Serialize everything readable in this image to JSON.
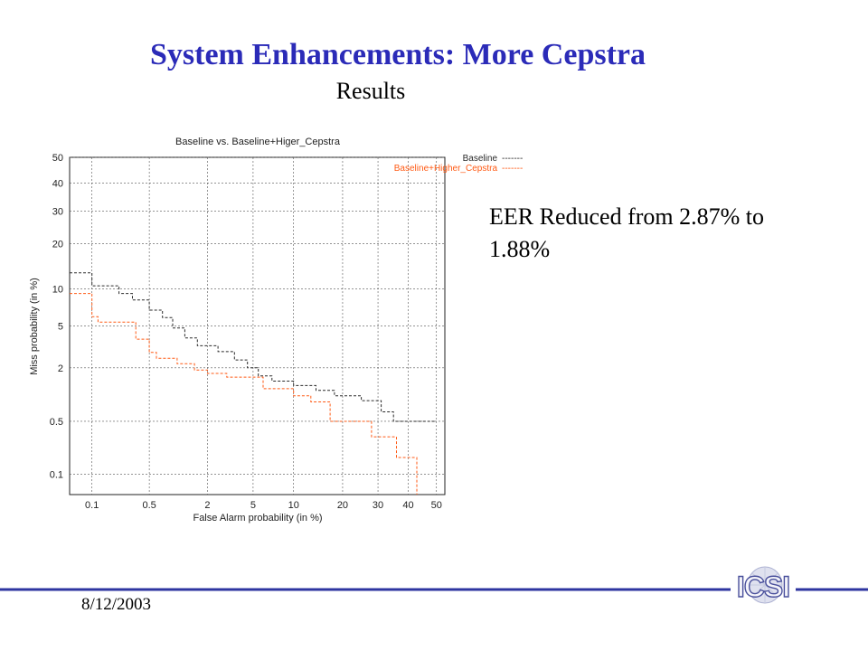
{
  "slide": {
    "title": "System Enhancements: More Cepstra",
    "subtitle": "Results",
    "note": "EER Reduced from 2.87% to 1.88%",
    "date": "8/12/2003",
    "logo_text": "ICSI"
  },
  "colors": {
    "title": "#2b2bb8",
    "rule": "#2e35a0",
    "baseline": "#2a2a2a",
    "higher": "#ff5a14",
    "grid": "#555555"
  },
  "chart_data": {
    "type": "line",
    "title": "Baseline vs. Baseline+Higer_Cepstra",
    "xlabel": "False Alarm probability (in %)",
    "ylabel": "Miss probability (in %)",
    "scale": "probit (normal deviate)",
    "xlim": [
      0.05,
      53
    ],
    "ylim": [
      0.05,
      50
    ],
    "x_ticks": [
      "0.1",
      "0.5",
      "2",
      "5",
      "10",
      "20",
      "30",
      "40",
      "50"
    ],
    "y_ticks": [
      "0.1",
      "0.5",
      "2",
      "5",
      "10",
      "20",
      "30",
      "40",
      "50"
    ],
    "grid": true,
    "legend_position": "top-right",
    "series": [
      {
        "name": "Baseline",
        "legend_sample": "-------",
        "points": [
          [
            0.05,
            13
          ],
          [
            0.1,
            13
          ],
          [
            0.1,
            10.5
          ],
          [
            0.22,
            10.5
          ],
          [
            0.22,
            9.2
          ],
          [
            0.32,
            9.2
          ],
          [
            0.32,
            8.2
          ],
          [
            0.5,
            8.2
          ],
          [
            0.5,
            6.8
          ],
          [
            0.7,
            6.8
          ],
          [
            0.7,
            5.9
          ],
          [
            0.9,
            5.9
          ],
          [
            0.9,
            4.8
          ],
          [
            1.2,
            4.8
          ],
          [
            1.2,
            3.9
          ],
          [
            1.6,
            3.9
          ],
          [
            1.6,
            3.3
          ],
          [
            2.5,
            3.3
          ],
          [
            2.5,
            2.9
          ],
          [
            3.5,
            2.9
          ],
          [
            3.5,
            2.4
          ],
          [
            4.5,
            2.4
          ],
          [
            4.5,
            2.0
          ],
          [
            5.5,
            2.0
          ],
          [
            5.5,
            1.65
          ],
          [
            7,
            1.65
          ],
          [
            7,
            1.45
          ],
          [
            10,
            1.45
          ],
          [
            10,
            1.3
          ],
          [
            14,
            1.3
          ],
          [
            14,
            1.15
          ],
          [
            18,
            1.15
          ],
          [
            18,
            1.0
          ],
          [
            25,
            1.0
          ],
          [
            25,
            0.88
          ],
          [
            31,
            0.88
          ],
          [
            31,
            0.65
          ],
          [
            35,
            0.65
          ],
          [
            35,
            0.5
          ],
          [
            50,
            0.5
          ]
        ]
      },
      {
        "name": "Baseline+Higher_Cepstra",
        "legend_sample": "-------",
        "points": [
          [
            0.05,
            9.2
          ],
          [
            0.1,
            9.2
          ],
          [
            0.1,
            6.0
          ],
          [
            0.12,
            6.0
          ],
          [
            0.12,
            5.4
          ],
          [
            0.35,
            5.4
          ],
          [
            0.35,
            3.8
          ],
          [
            0.5,
            3.8
          ],
          [
            0.5,
            2.85
          ],
          [
            0.6,
            2.85
          ],
          [
            0.6,
            2.5
          ],
          [
            1.0,
            2.5
          ],
          [
            1.0,
            2.2
          ],
          [
            1.5,
            2.2
          ],
          [
            1.5,
            1.9
          ],
          [
            2.0,
            1.9
          ],
          [
            2.0,
            1.75
          ],
          [
            3.0,
            1.75
          ],
          [
            3.0,
            1.6
          ],
          [
            6.0,
            1.6
          ],
          [
            6.0,
            1.2
          ],
          [
            10,
            1.2
          ],
          [
            10,
            1.0
          ],
          [
            13,
            1.0
          ],
          [
            13,
            0.85
          ],
          [
            17,
            0.85
          ],
          [
            17,
            0.5
          ],
          [
            28,
            0.5
          ],
          [
            28,
            0.32
          ],
          [
            36,
            0.32
          ],
          [
            36,
            0.17
          ],
          [
            43,
            0.17
          ],
          [
            43,
            0.05
          ]
        ]
      }
    ]
  }
}
